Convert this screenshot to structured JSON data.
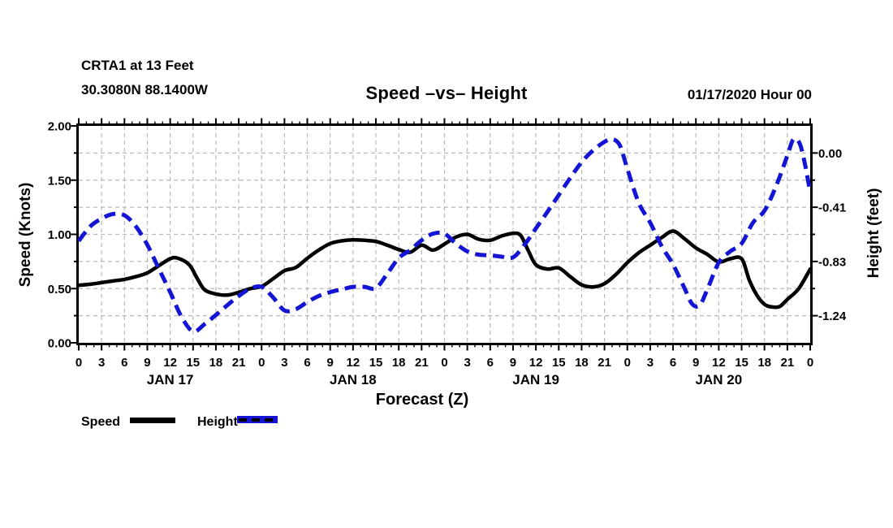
{
  "chart_data": {
    "type": "line",
    "station": "CRTA1 at 13 Feet",
    "coords": "30.3080N 88.1400W",
    "title": "Speed –vs– Height",
    "datetime": "01/17/2020 Hour 00",
    "xlabel": "Forecast (Z)",
    "ylabel_left": "Speed (Knots)",
    "ylabel_right": "Height (feet)",
    "grid": true,
    "grid_color": "#b9b9b9",
    "legend_position": "bottom-left",
    "x_axis": {
      "hours_total": 96,
      "major_step": 3,
      "minor_step": 1,
      "hour_labels": [
        "0",
        "3",
        "6",
        "9",
        "12",
        "15",
        "18",
        "21"
      ],
      "end_label": "0",
      "days": [
        "JAN 17",
        "JAN 18",
        "JAN 19",
        "JAN 20"
      ]
    },
    "y_left": {
      "min": 0,
      "max": 2,
      "minor_step": 0.25,
      "labels": [
        "2.00",
        "1.50",
        "1.00",
        "0.50",
        "0.00"
      ],
      "values": [
        2,
        1.5,
        1,
        0.5,
        0
      ]
    },
    "y_right": {
      "labels": [
        "0.00",
        "-0.41",
        "-0.83",
        "-1.24"
      ],
      "feet_values": [
        0,
        -0.41,
        -0.83,
        -1.24
      ],
      "anchor_knots": [
        1.75,
        1.25,
        0.75,
        0.25
      ]
    },
    "series": [
      {
        "name": "Speed",
        "axis": "left",
        "units": "knots",
        "color": "#000000",
        "style": "solid",
        "points": [
          [
            0,
            0.53
          ],
          [
            1.5,
            0.54
          ],
          [
            3,
            0.555
          ],
          [
            4.5,
            0.57
          ],
          [
            6,
            0.585
          ],
          [
            7.5,
            0.61
          ],
          [
            9,
            0.645
          ],
          [
            10.5,
            0.71
          ],
          [
            12,
            0.775
          ],
          [
            13,
            0.78
          ],
          [
            14.5,
            0.72
          ],
          [
            15.5,
            0.6
          ],
          [
            16.5,
            0.49
          ],
          [
            18,
            0.45
          ],
          [
            19.5,
            0.44
          ],
          [
            21,
            0.465
          ],
          [
            22.5,
            0.5
          ],
          [
            24,
            0.52
          ],
          [
            25.5,
            0.59
          ],
          [
            27,
            0.665
          ],
          [
            28.5,
            0.695
          ],
          [
            30,
            0.78
          ],
          [
            31.5,
            0.855
          ],
          [
            33,
            0.915
          ],
          [
            34.5,
            0.94
          ],
          [
            36,
            0.95
          ],
          [
            37.5,
            0.945
          ],
          [
            39,
            0.935
          ],
          [
            40.5,
            0.9
          ],
          [
            42,
            0.86
          ],
          [
            43.5,
            0.835
          ],
          [
            45,
            0.9
          ],
          [
            46.5,
            0.855
          ],
          [
            48,
            0.91
          ],
          [
            49.5,
            0.975
          ],
          [
            51,
            1.0
          ],
          [
            52.5,
            0.955
          ],
          [
            54,
            0.945
          ],
          [
            55.5,
            0.985
          ],
          [
            57,
            1.01
          ],
          [
            58,
            0.99
          ],
          [
            59,
            0.85
          ],
          [
            60,
            0.72
          ],
          [
            61.5,
            0.68
          ],
          [
            63,
            0.69
          ],
          [
            64.5,
            0.61
          ],
          [
            66,
            0.535
          ],
          [
            67.5,
            0.515
          ],
          [
            69,
            0.545
          ],
          [
            70.5,
            0.63
          ],
          [
            72,
            0.74
          ],
          [
            73.5,
            0.83
          ],
          [
            75,
            0.9
          ],
          [
            76.5,
            0.97
          ],
          [
            78,
            1.03
          ],
          [
            79.5,
            0.96
          ],
          [
            81,
            0.875
          ],
          [
            82.5,
            0.815
          ],
          [
            84,
            0.745
          ],
          [
            85.5,
            0.775
          ],
          [
            87,
            0.775
          ],
          [
            88,
            0.58
          ],
          [
            89,
            0.44
          ],
          [
            90,
            0.355
          ],
          [
            91,
            0.33
          ],
          [
            92,
            0.335
          ],
          [
            93,
            0.4
          ],
          [
            94.5,
            0.5
          ],
          [
            96,
            0.68
          ]
        ]
      },
      {
        "name": "Height",
        "axis": "right",
        "units": "feet",
        "color": "#1414d4",
        "style": "dashed",
        "points": [
          [
            0,
            -0.67
          ],
          [
            1.5,
            -0.56
          ],
          [
            3,
            -0.5
          ],
          [
            4.5,
            -0.465
          ],
          [
            6,
            -0.475
          ],
          [
            7.5,
            -0.56
          ],
          [
            9,
            -0.7
          ],
          [
            10.5,
            -0.88
          ],
          [
            12,
            -1.06
          ],
          [
            13.5,
            -1.25
          ],
          [
            15,
            -1.36
          ],
          [
            16.5,
            -1.305
          ],
          [
            18,
            -1.235
          ],
          [
            19.5,
            -1.16
          ],
          [
            21,
            -1.09
          ],
          [
            22.5,
            -1.035
          ],
          [
            24,
            -1.02
          ],
          [
            25.5,
            -1.1
          ],
          [
            27,
            -1.2
          ],
          [
            28.5,
            -1.19
          ],
          [
            30,
            -1.135
          ],
          [
            31.5,
            -1.09
          ],
          [
            33,
            -1.06
          ],
          [
            34.5,
            -1.04
          ],
          [
            36,
            -1.02
          ],
          [
            37.5,
            -1.02
          ],
          [
            39,
            -1.03
          ],
          [
            40.5,
            -0.92
          ],
          [
            42,
            -0.8
          ],
          [
            43.5,
            -0.74
          ],
          [
            45,
            -0.665
          ],
          [
            46.5,
            -0.615
          ],
          [
            48,
            -0.615
          ],
          [
            49.5,
            -0.69
          ],
          [
            51,
            -0.75
          ],
          [
            52.5,
            -0.775
          ],
          [
            54,
            -0.78
          ],
          [
            55.5,
            -0.79
          ],
          [
            57,
            -0.795
          ],
          [
            58.5,
            -0.7
          ],
          [
            60,
            -0.575
          ],
          [
            61.5,
            -0.45
          ],
          [
            63,
            -0.32
          ],
          [
            64.5,
            -0.19
          ],
          [
            66,
            -0.07
          ],
          [
            67.5,
            0.02
          ],
          [
            69,
            0.085
          ],
          [
            70,
            0.105
          ],
          [
            71,
            0.06
          ],
          [
            72,
            -0.12
          ],
          [
            73.5,
            -0.38
          ],
          [
            75,
            -0.53
          ],
          [
            76.5,
            -0.71
          ],
          [
            78,
            -0.85
          ],
          [
            79.5,
            -1.03
          ],
          [
            80.5,
            -1.15
          ],
          [
            81.5,
            -1.16
          ],
          [
            82.5,
            -1.04
          ],
          [
            84,
            -0.835
          ],
          [
            85.5,
            -0.75
          ],
          [
            87,
            -0.69
          ],
          [
            88.5,
            -0.53
          ],
          [
            90,
            -0.44
          ],
          [
            91.5,
            -0.255
          ],
          [
            93,
            -0.02
          ],
          [
            93.8,
            0.105
          ],
          [
            94.6,
            0.075
          ],
          [
            95.3,
            -0.08
          ],
          [
            96,
            -0.3
          ]
        ]
      }
    ]
  }
}
